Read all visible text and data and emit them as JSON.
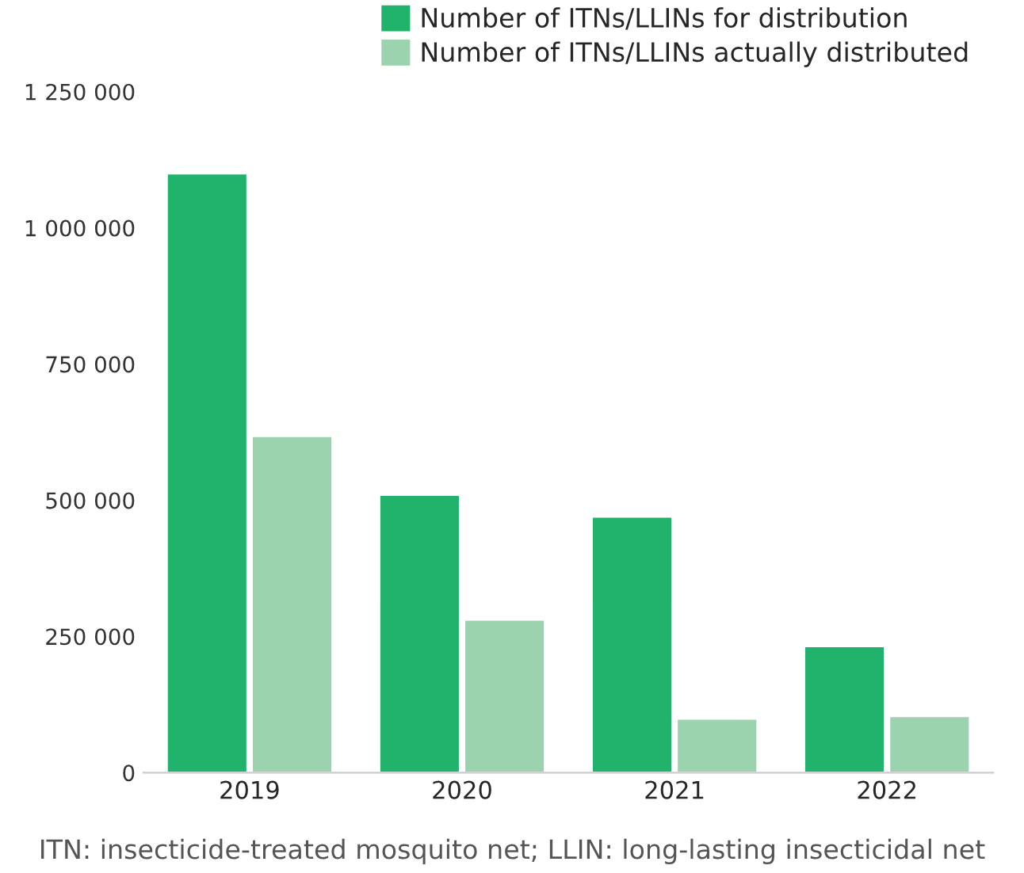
{
  "chart_data": {
    "type": "bar",
    "categories": [
      "2019",
      "2020",
      "2021",
      "2022"
    ],
    "series": [
      {
        "name": "Number of ITNs/LLINs for distribution",
        "color": "#21b36b",
        "values": [
          1100000,
          510000,
          470000,
          232000
        ]
      },
      {
        "name": "Number of ITNs/LLINs actually distributed",
        "color": "#9bd3ae",
        "values": [
          618000,
          281000,
          99000,
          104000
        ]
      }
    ],
    "ylim": [
      0,
      1250000
    ],
    "yticks": [
      0,
      {
        "value": 250000,
        "label": "250 000"
      },
      {
        "value": 500000,
        "label": "500 000"
      },
      {
        "value": 750000,
        "label": "750 000"
      },
      {
        "value": 1000000,
        "label": "1 000 000"
      },
      {
        "value": 1250000,
        "label": "1 250 000"
      }
    ],
    "grid": false,
    "legend": "top right",
    "annotations": [
      "ITN: insecticide-treated mosquito net; LLIN: long-lasting insecticidal net"
    ]
  }
}
